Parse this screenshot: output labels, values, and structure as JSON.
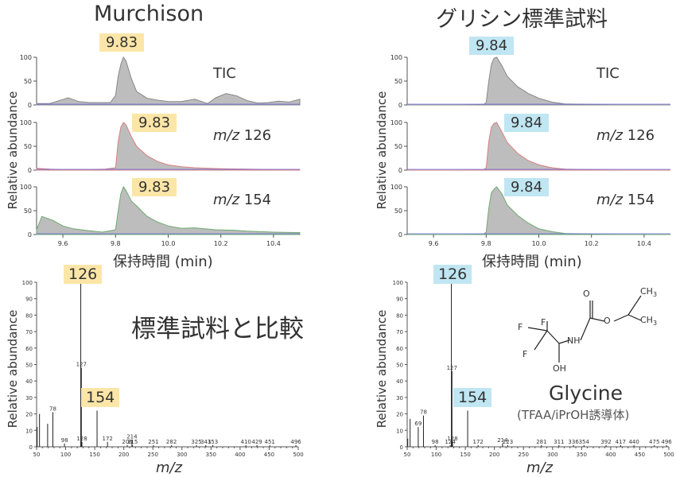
{
  "left_panel": {
    "title": "Murchison",
    "xlabel": "保持時間 (min)",
    "ylabel": "Relative abundance",
    "peak_tag_color": "#fbe6a8",
    "traces": [
      {
        "label": "TIC",
        "peak_tag": "9.83",
        "stroke": "#888888"
      },
      {
        "label_mz": "m/z",
        "label_num": " 126",
        "peak_tag": "9.83",
        "stroke": "#d98080"
      },
      {
        "label_mz": "m/z",
        "label_num": " 154",
        "peak_tag": "9.83",
        "stroke": "#6faa6f"
      }
    ]
  },
  "right_panel": {
    "title": "グリシン標準試料",
    "xlabel": "保持時間 (min)",
    "ylabel": "Relative abundance",
    "peak_tag_color": "#bfe6f2",
    "traces": [
      {
        "label": "TIC",
        "peak_tag": "9.84",
        "stroke": "#888888"
      },
      {
        "label_mz": "m/z",
        "label_num": " 126",
        "peak_tag": "9.84",
        "stroke": "#d98080"
      },
      {
        "label_mz": "m/z",
        "label_num": " 154",
        "peak_tag": "9.84",
        "stroke": "#6faa6f"
      }
    ]
  },
  "left_spectrum": {
    "ylabel": "Relative abundance",
    "xlabel": "m/z",
    "comparison_text": "標準試料と比較",
    "tag_126": "126",
    "tag_154": "154"
  },
  "right_spectrum": {
    "ylabel": "Relative abundance",
    "xlabel": "m/z",
    "tag_126": "126",
    "tag_154": "154",
    "compound_name": "Glycine",
    "compound_note": "(TFAA/iPrOH誘導体)",
    "structure_atoms": {
      "CH3_top": "CH",
      "CH3_right": "CH",
      "sub": "3",
      "O1": "O",
      "O2": "O",
      "F1": "F",
      "F2": "F",
      "F3": "F",
      "NH": "NH",
      "OH": "OH"
    }
  },
  "chart_data": [
    {
      "type": "line",
      "title": "Murchison",
      "xlabel": "保持時間 (min)",
      "ylabel": "Relative abundance",
      "xlim": [
        9.5,
        10.5
      ],
      "xticks": [
        9.6,
        9.8,
        10.0,
        10.2,
        10.4
      ],
      "ylim": [
        0,
        100
      ],
      "yticks": [
        0,
        50,
        100
      ],
      "series": [
        {
          "name": "TIC",
          "apex": 9.83,
          "x": [
            9.5,
            9.55,
            9.58,
            9.62,
            9.66,
            9.7,
            9.75,
            9.78,
            9.8,
            9.81,
            9.82,
            9.83,
            9.84,
            9.86,
            9.88,
            9.92,
            9.96,
            10.0,
            10.05,
            10.1,
            10.15,
            10.18,
            10.22,
            10.26,
            10.3,
            10.34,
            10.38,
            10.42,
            10.46,
            10.5
          ],
          "y": [
            3,
            3,
            8,
            15,
            7,
            5,
            5,
            5,
            20,
            60,
            85,
            100,
            92,
            55,
            28,
            14,
            10,
            7,
            7,
            12,
            3,
            15,
            24,
            19,
            9,
            4,
            5,
            8,
            6,
            12
          ]
        },
        {
          "name": "m/z 126",
          "apex": 9.83,
          "x": [
            9.5,
            9.55,
            9.6,
            9.7,
            9.76,
            9.8,
            9.81,
            9.82,
            9.83,
            9.84,
            9.86,
            9.88,
            9.92,
            9.96,
            10.0,
            10.05,
            10.1,
            10.15,
            10.2,
            10.3,
            10.4,
            10.5
          ],
          "y": [
            4,
            2,
            1,
            1,
            2,
            5,
            60,
            90,
            100,
            95,
            70,
            50,
            30,
            18,
            11,
            7,
            5,
            4,
            3,
            2,
            1,
            1
          ]
        },
        {
          "name": "m/z 154",
          "apex": 9.83,
          "x": [
            9.5,
            9.52,
            9.56,
            9.6,
            9.64,
            9.7,
            9.75,
            9.8,
            9.81,
            9.82,
            9.83,
            9.84,
            9.86,
            9.88,
            9.92,
            9.96,
            10.0,
            10.05,
            10.1,
            10.18,
            10.25,
            10.3,
            10.4,
            10.5
          ],
          "y": [
            10,
            38,
            30,
            18,
            12,
            8,
            5,
            10,
            50,
            85,
            100,
            92,
            70,
            60,
            38,
            26,
            18,
            13,
            14,
            10,
            9,
            7,
            5,
            4
          ]
        }
      ]
    },
    {
      "type": "line",
      "title": "グリシン標準試料",
      "xlabel": "保持時間 (min)",
      "ylabel": "Relative abundance",
      "xlim": [
        9.5,
        10.5
      ],
      "xticks": [
        9.6,
        9.8,
        10.0,
        10.2,
        10.4
      ],
      "ylim": [
        0,
        100
      ],
      "yticks": [
        0,
        50,
        100
      ],
      "series": [
        {
          "name": "TIC",
          "apex": 9.84,
          "x": [
            9.5,
            9.6,
            9.7,
            9.79,
            9.8,
            9.81,
            9.82,
            9.83,
            9.84,
            9.86,
            9.88,
            9.92,
            9.96,
            10.0,
            10.05,
            10.1,
            10.2,
            10.3,
            10.4,
            10.5
          ],
          "y": [
            0,
            0,
            0,
            1,
            5,
            50,
            85,
            98,
            100,
            82,
            60,
            38,
            24,
            14,
            6,
            2,
            1,
            0,
            0,
            0
          ]
        },
        {
          "name": "m/z 126",
          "apex": 9.84,
          "x": [
            9.5,
            9.6,
            9.7,
            9.79,
            9.8,
            9.81,
            9.82,
            9.83,
            9.84,
            9.86,
            9.88,
            9.92,
            9.96,
            10.0,
            10.05,
            10.1,
            10.2,
            10.3,
            10.4,
            10.5
          ],
          "y": [
            0,
            0,
            0,
            1,
            5,
            60,
            90,
            98,
            100,
            80,
            58,
            35,
            20,
            11,
            5,
            2,
            1,
            0,
            0,
            0
          ]
        },
        {
          "name": "m/z 154",
          "apex": 9.84,
          "x": [
            9.5,
            9.6,
            9.7,
            9.79,
            9.8,
            9.81,
            9.82,
            9.83,
            9.84,
            9.86,
            9.88,
            9.92,
            9.96,
            10.0,
            10.05,
            10.1,
            10.2,
            10.3,
            10.4,
            10.5
          ],
          "y": [
            0,
            0,
            0,
            1,
            5,
            55,
            88,
            95,
            100,
            85,
            62,
            40,
            24,
            12,
            6,
            2,
            1,
            0,
            0,
            0
          ]
        }
      ]
    },
    {
      "type": "bar",
      "title": "",
      "xlabel": "m/z",
      "ylabel": "Relative abundance",
      "xlim": [
        50,
        500
      ],
      "xticks": [
        50,
        60,
        70,
        80,
        90,
        100,
        110,
        120,
        130,
        140,
        150,
        160,
        170,
        180,
        190,
        200,
        210,
        220,
        230,
        240,
        250,
        260,
        270,
        280,
        290,
        300,
        310,
        320,
        330,
        340,
        350,
        360,
        370,
        380,
        390,
        400,
        410,
        420,
        430,
        440,
        450,
        460,
        470,
        480,
        490,
        500
      ],
      "xtick_labels": [
        50,
        100,
        150,
        200,
        250,
        300,
        350,
        400,
        450,
        500
      ],
      "ylim": [
        0,
        100
      ],
      "yticks": [
        0,
        10,
        20,
        30,
        40,
        50,
        60,
        70,
        80,
        90,
        100
      ],
      "peaks": [
        {
          "mz": 51,
          "y": 12
        },
        {
          "mz": 55,
          "y": 20
        },
        {
          "mz": 69,
          "y": 14
        },
        {
          "mz": 78,
          "y": 21,
          "label": "78"
        },
        {
          "mz": 98,
          "y": 2,
          "label": "98"
        },
        {
          "mz": 126,
          "y": 100,
          "label": "126"
        },
        {
          "mz": 127,
          "y": 48,
          "label": "127"
        },
        {
          "mz": 128,
          "y": 3,
          "label": "128"
        },
        {
          "mz": 154,
          "y": 22,
          "label": "154"
        },
        {
          "mz": 172,
          "y": 3,
          "label": "172"
        },
        {
          "mz": 206,
          "y": 1,
          "label": "206"
        },
        {
          "mz": 214,
          "y": 4,
          "label": "214"
        },
        {
          "mz": 215,
          "y": 1,
          "label": "215"
        },
        {
          "mz": 251,
          "y": 1,
          "label": "251"
        },
        {
          "mz": 282,
          "y": 1,
          "label": "282"
        },
        {
          "mz": 325,
          "y": 1,
          "label": "325"
        },
        {
          "mz": 341,
          "y": 1,
          "label": "341"
        },
        {
          "mz": 353,
          "y": 1,
          "label": "353"
        },
        {
          "mz": 410,
          "y": 1,
          "label": "410"
        },
        {
          "mz": 429,
          "y": 1,
          "label": "429"
        },
        {
          "mz": 451,
          "y": 1,
          "label": "451"
        },
        {
          "mz": 496,
          "y": 1,
          "label": "496"
        }
      ]
    },
    {
      "type": "bar",
      "title": "",
      "xlabel": "m/z",
      "ylabel": "Relative abundance",
      "xlim": [
        50,
        500
      ],
      "xticks": [
        50,
        60,
        70,
        80,
        90,
        100,
        110,
        120,
        130,
        140,
        150,
        160,
        170,
        180,
        190,
        200,
        210,
        220,
        230,
        240,
        250,
        260,
        270,
        280,
        290,
        300,
        310,
        320,
        330,
        340,
        350,
        360,
        370,
        380,
        390,
        400,
        410,
        420,
        430,
        440,
        450,
        460,
        470,
        480,
        490,
        500
      ],
      "xtick_labels": [
        50,
        100,
        150,
        200,
        250,
        300,
        350,
        400,
        450,
        500
      ],
      "ylim": [
        0,
        100
      ],
      "yticks": [
        0,
        10,
        20,
        30,
        40,
        50,
        60,
        70,
        80,
        90,
        100
      ],
      "peaks": [
        {
          "mz": 51,
          "y": 5
        },
        {
          "mz": 55,
          "y": 17
        },
        {
          "mz": 69,
          "y": 12,
          "label": "69"
        },
        {
          "mz": 78,
          "y": 19,
          "label": "78"
        },
        {
          "mz": 98,
          "y": 1,
          "label": "98"
        },
        {
          "mz": 124,
          "y": 1,
          "label": "124"
        },
        {
          "mz": 126,
          "y": 100,
          "label": "126"
        },
        {
          "mz": 127,
          "y": 46,
          "label": "127"
        },
        {
          "mz": 128,
          "y": 3,
          "label": "128"
        },
        {
          "mz": 154,
          "y": 22,
          "label": "154"
        },
        {
          "mz": 172,
          "y": 1,
          "label": "172"
        },
        {
          "mz": 214,
          "y": 2,
          "label": "214"
        },
        {
          "mz": 223,
          "y": 1,
          "label": "223"
        },
        {
          "mz": 281,
          "y": 1,
          "label": "281"
        },
        {
          "mz": 311,
          "y": 1,
          "label": "311"
        },
        {
          "mz": 336,
          "y": 1,
          "label": "336"
        },
        {
          "mz": 354,
          "y": 1,
          "label": "354"
        },
        {
          "mz": 392,
          "y": 1,
          "label": "392"
        },
        {
          "mz": 417,
          "y": 1,
          "label": "417"
        },
        {
          "mz": 440,
          "y": 1,
          "label": "440"
        },
        {
          "mz": 475,
          "y": 1,
          "label": "475"
        },
        {
          "mz": 496,
          "y": 1,
          "label": "496"
        }
      ]
    }
  ]
}
